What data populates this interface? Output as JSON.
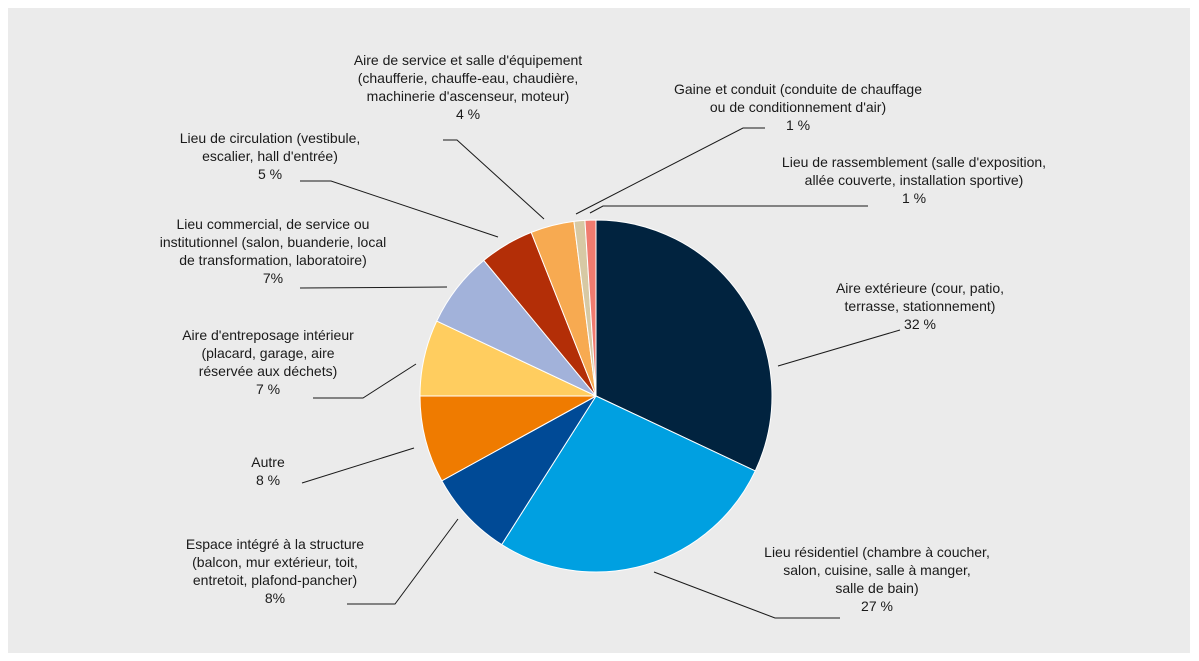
{
  "chart_data": {
    "type": "pie",
    "title": "",
    "slices": [
      {
        "label_lines": [
          "Aire extérieure (cour, patio,",
          "terrasse, stationnement)",
          "32 %"
        ],
        "value": 32,
        "color": "#01233f"
      },
      {
        "label_lines": [
          "Lieu résidentiel (chambre à coucher,",
          "salon, cuisine, salle à manger,",
          "salle de bain)",
          "27 %"
        ],
        "value": 27,
        "color": "#00a0e1"
      },
      {
        "label_lines": [
          "Espace intégré à la structure",
          "(balcon, mur extérieur, toit,",
          "entretoit, plafond-pancher)",
          "8%"
        ],
        "value": 8,
        "color": "#004a96"
      },
      {
        "label_lines": [
          "Autre",
          "8 %"
        ],
        "value": 8,
        "color": "#ef7b00"
      },
      {
        "label_lines": [
          "Aire d'entreposage intérieur",
          "(placard, garage, aire",
          "réservée aux déchets)",
          "7 %"
        ],
        "value": 7,
        "color": "#ffcd5f"
      },
      {
        "label_lines": [
          "Lieu commercial, de service ou",
          "institutionnel (salon, buanderie, local",
          "de transformation, laboratoire)",
          "7%"
        ],
        "value": 7,
        "color": "#a2b2da"
      },
      {
        "label_lines": [
          "Lieu de circulation (vestibule,",
          "escalier, hall d'entrée)",
          "5 %"
        ],
        "value": 5,
        "color": "#b32e07"
      },
      {
        "label_lines": [
          "Aire de service et salle d'équipement",
          "(chaufferie, chauffe-eau, chaudière,",
          "machinerie d'ascenseur, moteur)",
          "4 %"
        ],
        "value": 4,
        "color": "#f7aa51"
      },
      {
        "label_lines": [
          "Gaine et conduit (conduite de chauffage",
          "ou de conditionnement d'air)",
          "1 %"
        ],
        "value": 1,
        "color": "#d7c9a4"
      },
      {
        "label_lines": [
          "Lieu de rassemblement (salle d'exposition,",
          "allée couverte, installation sportive)",
          "1 %"
        ],
        "value": 1,
        "color": "#f07b6f"
      }
    ]
  }
}
